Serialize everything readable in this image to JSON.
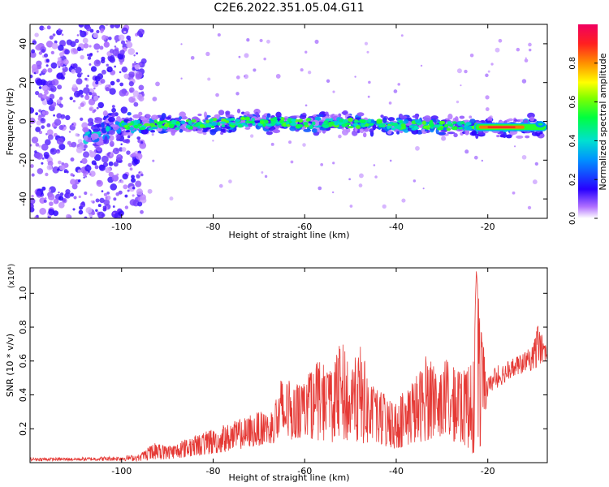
{
  "title": "C2E6.2022.351.05.04.G11",
  "colors": {
    "snr_line": "#e53935",
    "background": "#ffffff",
    "colormap": [
      "#ffffff",
      "#9b30ff",
      "#1e10ff",
      "#00c8ff",
      "#00ff40",
      "#ffff00",
      "#ff8000",
      "#ff0040"
    ]
  },
  "chart_data": [
    {
      "type": "heatmap",
      "xlabel": "Height of straight line (km)",
      "ylabel": "Frequency (Hz)",
      "xlim": [
        -120,
        -7
      ],
      "ylim": [
        -50,
        50
      ],
      "x_ticks": [
        -100,
        -80,
        -60,
        -40,
        -20
      ],
      "y_ticks": [
        -40,
        -20,
        0,
        20,
        40
      ],
      "x_tick_labels": [
        "-100",
        "-80",
        "-60",
        "-40",
        "-20"
      ],
      "y_tick_labels": [
        "-40",
        "-20",
        "0",
        "20",
        "40"
      ],
      "colorbar": {
        "label": "Normalized spectral amplitude",
        "range": [
          0,
          1
        ],
        "ticks": [
          0.0,
          0.2,
          0.4,
          0.6,
          0.8
        ],
        "tick_labels": [
          "0.0",
          "0.2",
          "0.4",
          "0.6",
          "0.8"
        ]
      },
      "center_line_frequency": [
        [
          -108,
          -8
        ],
        [
          -100,
          -2
        ],
        [
          -90,
          -2
        ],
        [
          -80,
          -1
        ],
        [
          -70,
          0
        ],
        [
          -60,
          -1
        ],
        [
          -50,
          -1
        ],
        [
          -40,
          -2
        ],
        [
          -30,
          -2
        ],
        [
          -22,
          -3
        ],
        [
          -15,
          -3
        ],
        [
          -8,
          -2
        ]
      ],
      "peak_band": {
        "x_range": [
          -22,
          -10
        ],
        "frequency": -3,
        "amplitude": 0.9
      }
    },
    {
      "type": "line",
      "xlabel": "Height of straight line (km)",
      "ylabel": "SNR (10 * v/v)",
      "y_multiplier": "(x10⁴)",
      "xlim": [
        -120,
        -7
      ],
      "ylim": [
        0,
        1.15
      ],
      "x_ticks": [
        -100,
        -80,
        -60,
        -40,
        -20
      ],
      "y_ticks": [
        0.2,
        0.4,
        0.6,
        0.8,
        1.0
      ],
      "x_tick_labels": [
        "-100",
        "-80",
        "-60",
        "-40",
        "-20"
      ],
      "y_tick_labels": [
        "0.2",
        "0.4",
        "0.6",
        "0.8",
        "1.0"
      ],
      "series": [
        {
          "envelope": [
            [
              -120,
              0.03
            ],
            [
              -110,
              0.03
            ],
            [
              -100,
              0.04
            ],
            [
              -96,
              0.05
            ],
            [
              -93,
              0.12
            ],
            [
              -90,
              0.1
            ],
            [
              -85,
              0.15
            ],
            [
              -80,
              0.2
            ],
            [
              -75,
              0.25
            ],
            [
              -70,
              0.3
            ],
            [
              -67,
              0.3
            ],
            [
              -65,
              0.53
            ],
            [
              -62,
              0.45
            ],
            [
              -60,
              0.5
            ],
            [
              -57,
              0.6
            ],
            [
              -54,
              0.55
            ],
            [
              -52,
              0.73
            ],
            [
              -50,
              0.55
            ],
            [
              -48,
              0.7
            ],
            [
              -45,
              0.45
            ],
            [
              -42,
              0.4
            ],
            [
              -40,
              0.35
            ],
            [
              -38,
              0.45
            ],
            [
              -35,
              0.55
            ],
            [
              -33,
              0.68
            ],
            [
              -31,
              0.5
            ],
            [
              -29,
              0.62
            ],
            [
              -27,
              0.55
            ],
            [
              -25,
              0.55
            ],
            [
              -23,
              0.7
            ],
            [
              -22.5,
              1.13
            ],
            [
              -21.5,
              0.8
            ],
            [
              -20,
              0.5
            ],
            [
              -18,
              0.58
            ],
            [
              -16,
              0.6
            ],
            [
              -14,
              0.62
            ],
            [
              -12,
              0.65
            ],
            [
              -10,
              0.7
            ],
            [
              -9,
              0.84
            ],
            [
              -7,
              0.66
            ]
          ],
          "floor": [
            [
              -120,
              0.01
            ],
            [
              -96,
              0.01
            ],
            [
              -90,
              0.02
            ],
            [
              -80,
              0.05
            ],
            [
              -70,
              0.1
            ],
            [
              -65,
              0.12
            ],
            [
              -60,
              0.15
            ],
            [
              -55,
              0.12
            ],
            [
              -50,
              0.12
            ],
            [
              -45,
              0.1
            ],
            [
              -40,
              0.08
            ],
            [
              -35,
              0.12
            ],
            [
              -30,
              0.15
            ],
            [
              -25,
              0.1
            ],
            [
              -23,
              0.05
            ],
            [
              -22,
              0.02
            ],
            [
              -21,
              0.2
            ],
            [
              -20,
              0.4
            ],
            [
              -15,
              0.5
            ],
            [
              -10,
              0.55
            ],
            [
              -7,
              0.6
            ]
          ]
        }
      ]
    }
  ]
}
